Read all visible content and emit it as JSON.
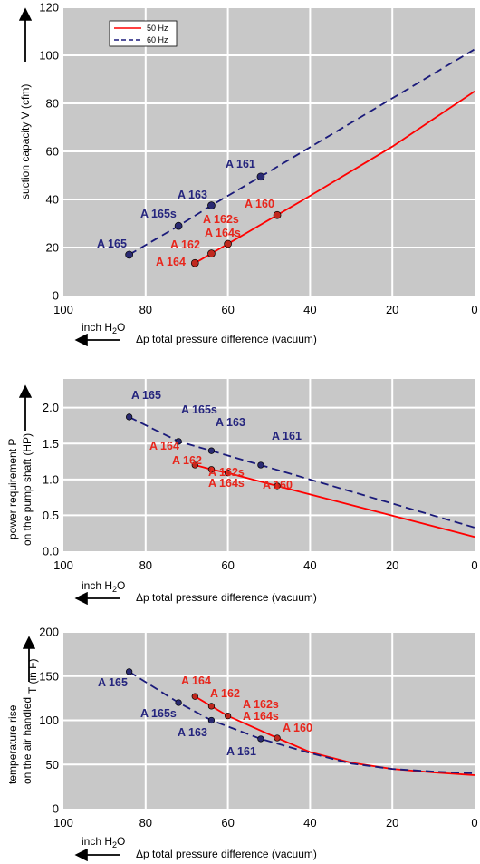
{
  "colors": {
    "plot_bg": "#c8c8c8",
    "grid": "#ffffff",
    "hz50": "#ff0000",
    "hz60": "#1a1a7a",
    "label50": "#e8261c",
    "label60": "#25257e",
    "marker50": "#c0281e",
    "marker60": "#2a2a72"
  },
  "common": {
    "x_unit_label_main": "inch H",
    "x_unit_label_sub": "2",
    "x_unit_label_tail": "O",
    "x_axis_label": "Δp   total pressure difference (vacuum)",
    "x_ticks": [
      "100",
      "80",
      "60",
      "40",
      "20",
      "0"
    ]
  },
  "chart_data": [
    {
      "type": "line",
      "name": "suction",
      "ylabel": "suction capacity V (cfm)",
      "xlim": [
        100,
        0
      ],
      "ylim": [
        0,
        120
      ],
      "y_ticks": [
        "0",
        "20",
        "40",
        "60",
        "80",
        "100",
        "120"
      ],
      "y_tick_values": [
        0,
        20,
        40,
        60,
        80,
        100,
        120
      ],
      "legend": {
        "position": "top-left",
        "entries": [
          "50 Hz",
          "60 Hz"
        ]
      },
      "series": [
        {
          "name": "50 Hz",
          "style": "solid",
          "curve": [
            [
              68,
              13.5
            ],
            [
              64,
              17.5
            ],
            [
              60,
              21.5
            ],
            [
              48,
              33.5
            ],
            [
              40,
              41.5
            ],
            [
              20,
              62
            ],
            [
              0,
              85
            ]
          ],
          "points": [
            {
              "label": "A 164",
              "x": 68,
              "y": 13.5
            },
            {
              "label": "A 162",
              "x": 64,
              "y": 17.5
            },
            {
              "label": "A 162s A 164s",
              "x": 60,
              "y": 21.5
            },
            {
              "label": "A 160",
              "x": 48,
              "y": 33.5
            }
          ]
        },
        {
          "name": "60 Hz",
          "style": "dashed",
          "curve": [
            [
              84,
              17
            ],
            [
              72,
              29
            ],
            [
              64,
              37.5
            ],
            [
              52,
              49.5
            ],
            [
              0,
              102.5
            ]
          ],
          "points": [
            {
              "label": "A 165",
              "x": 84,
              "y": 17
            },
            {
              "label": "A 165s",
              "x": 72,
              "y": 29
            },
            {
              "label": "A 163",
              "x": 64,
              "y": 37.5
            },
            {
              "label": "A 161",
              "x": 52,
              "y": 49.5
            }
          ]
        }
      ]
    },
    {
      "type": "line",
      "name": "power",
      "ylabel_line1": "power requirement P",
      "ylabel_line2": "on the pump shaft (HP)",
      "xlim": [
        100,
        0
      ],
      "ylim": [
        0,
        2.4
      ],
      "y_ticks": [
        "0.0",
        "0.5",
        "1.0",
        "1.5",
        "2.0"
      ],
      "y_tick_values": [
        0,
        0.5,
        1.0,
        1.5,
        2.0
      ],
      "series": [
        {
          "name": "50 Hz",
          "style": "solid",
          "curve": [
            [
              68,
              1.2
            ],
            [
              64,
              1.14
            ],
            [
              60,
              1.09
            ],
            [
              48,
              0.91
            ],
            [
              0,
              0.2
            ]
          ],
          "points": [
            {
              "label": "A 164",
              "x": 68,
              "y": 1.2
            },
            {
              "label": "A 162",
              "x": 64,
              "y": 1.14
            },
            {
              "label": "A 162s A 164s",
              "x": 60,
              "y": 1.09
            },
            {
              "label": "A 160",
              "x": 48,
              "y": 0.91
            }
          ]
        },
        {
          "name": "60 Hz",
          "style": "dashed",
          "curve": [
            [
              84,
              1.87
            ],
            [
              72,
              1.53
            ],
            [
              64,
              1.4
            ],
            [
              52,
              1.2
            ],
            [
              0,
              0.33
            ]
          ],
          "points": [
            {
              "label": "A 165",
              "x": 84,
              "y": 1.87
            },
            {
              "label": "A 165s",
              "x": 72,
              "y": 1.53
            },
            {
              "label": "A 163",
              "x": 64,
              "y": 1.4
            },
            {
              "label": "A 161",
              "x": 52,
              "y": 1.2
            }
          ]
        }
      ]
    },
    {
      "type": "line",
      "name": "temperature",
      "ylabel_line1": "temperature rise",
      "ylabel_line2": "on the air handled",
      "ylabel_side": "T    (in F)",
      "xlim": [
        100,
        0
      ],
      "ylim": [
        0,
        200
      ],
      "y_ticks": [
        "0",
        "50",
        "100",
        "150",
        "200"
      ],
      "y_tick_values": [
        0,
        50,
        100,
        150,
        200
      ],
      "series": [
        {
          "name": "50 Hz",
          "style": "solid",
          "curve": [
            [
              68,
              127
            ],
            [
              64,
              116
            ],
            [
              60,
              105
            ],
            [
              48,
              80
            ],
            [
              40,
              64
            ],
            [
              30,
              52
            ],
            [
              20,
              45
            ],
            [
              10,
              41
            ],
            [
              0,
              38
            ]
          ],
          "points": [
            {
              "label": "A 164",
              "x": 68,
              "y": 127
            },
            {
              "label": "A 162",
              "x": 64,
              "y": 116
            },
            {
              "label": "A 162s A 164s",
              "x": 60,
              "y": 105
            },
            {
              "label": "A 160",
              "x": 48,
              "y": 80
            }
          ]
        },
        {
          "name": "60 Hz",
          "style": "dashed",
          "curve": [
            [
              84,
              155
            ],
            [
              72,
              120
            ],
            [
              64,
              100
            ],
            [
              52,
              79
            ],
            [
              40,
              63
            ],
            [
              30,
              51
            ],
            [
              20,
              45
            ],
            [
              10,
              42
            ],
            [
              0,
              40
            ]
          ],
          "points": [
            {
              "label": "A 165",
              "x": 84,
              "y": 155
            },
            {
              "label": "A 165s",
              "x": 72,
              "y": 120
            },
            {
              "label": "A 163",
              "x": 64,
              "y": 100
            },
            {
              "label": "A 161",
              "x": 52,
              "y": 79
            }
          ]
        }
      ]
    }
  ]
}
